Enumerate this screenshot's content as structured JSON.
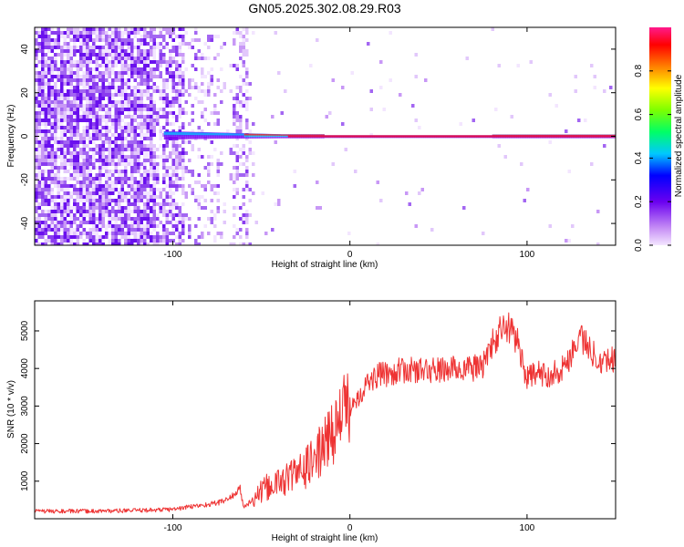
{
  "title": "GN05.2025.302.08.29.R03",
  "colors": {
    "snr_line": "#ee3333",
    "spectrum_band": "#dd1155",
    "spectrum_noise": "#7711ee"
  },
  "chart_data": [
    {
      "type": "heatmap",
      "title": "",
      "xlabel": "Height of straight line (km)",
      "ylabel": "Frequency (Hz)",
      "xlim": [
        -178,
        150
      ],
      "ylim": [
        -50,
        50
      ],
      "xticks": [
        -100,
        0,
        100
      ],
      "yticks": [
        -40,
        -20,
        0,
        20,
        40
      ],
      "colorbar": {
        "label": "Normalized spectral amplitude",
        "range": [
          0.0,
          1.0
        ],
        "ticks": [
          0.0,
          0.2,
          0.4,
          0.6,
          0.8
        ],
        "colormap": "rainbow (violet to magenta)"
      },
      "features": {
        "broadband_noise_x_range": [
          -178,
          -55
        ],
        "narrow_band_center_hz": 0,
        "narrow_band_x_range": [
          -105,
          150
        ]
      }
    },
    {
      "type": "line",
      "title": "",
      "xlabel": "Height of straight line (km)",
      "ylabel": "SNR (10 * v/v)",
      "xlim": [
        -178,
        150
      ],
      "ylim": [
        0,
        5800
      ],
      "xticks": [
        -100,
        0,
        100
      ],
      "yticks": [
        1000,
        2000,
        3000,
        4000,
        5000
      ],
      "series": [
        {
          "x": [
            -178,
            -150,
            -120,
            -100,
            -90,
            -80,
            -75,
            -70,
            -65,
            -62,
            -60,
            -55,
            -50,
            -45,
            -40,
            -35,
            -30,
            -25,
            -20,
            -15,
            -10,
            -5,
            0,
            5,
            10,
            15,
            20,
            30,
            40,
            50,
            60,
            70,
            75,
            80,
            85,
            90,
            95,
            100,
            105,
            110,
            115,
            120,
            125,
            130,
            135,
            140,
            145,
            150
          ],
          "y": [
            200,
            200,
            220,
            250,
            320,
            380,
            420,
            500,
            650,
            800,
            300,
            500,
            700,
            900,
            950,
            1100,
            1200,
            1350,
            1600,
            1900,
            2300,
            2700,
            3000,
            3300,
            3600,
            3800,
            3850,
            3950,
            3950,
            3950,
            4000,
            4000,
            4100,
            4600,
            5000,
            5100,
            4700,
            3700,
            3900,
            3800,
            3900,
            4000,
            4400,
            4900,
            4500,
            4300,
            4200,
            4300
          ]
        }
      ]
    }
  ]
}
